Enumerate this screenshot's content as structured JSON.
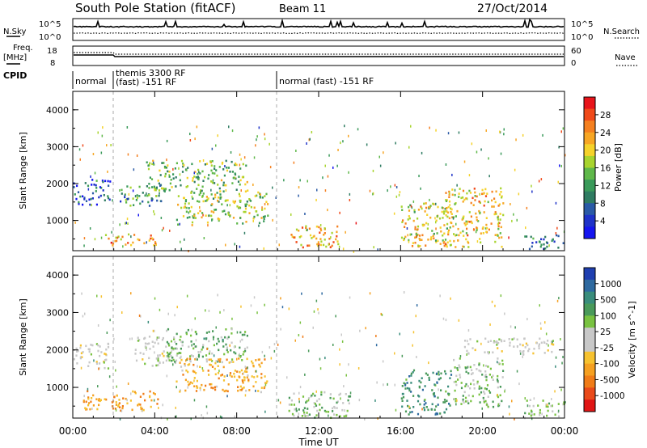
{
  "header": {
    "station": "South Pole Station (fitACF)",
    "beam": "Beam 11",
    "date": "27/Oct/2014"
  },
  "side_labels": {
    "nsky": "N.Sky",
    "nsearch": "N.Search",
    "freq_line1": "Freq.",
    "freq_line2": "[MHz]",
    "nave": "Nave",
    "cpid": "CPID"
  },
  "noise_panel": {
    "left_ticks": [
      "10^5",
      "10^0"
    ],
    "right_ticks": [
      "10^5",
      "10^0"
    ]
  },
  "freq_panel": {
    "left_ticks": [
      "18",
      "8"
    ],
    "right_ticks": [
      "60",
      "0"
    ]
  },
  "cpid_segments": [
    {
      "line1": "normal",
      "line2": ""
    },
    {
      "line1": "themis 3300 RF",
      "line2": "(fast) -151 RF"
    },
    {
      "line1": "normal (fast) -151 RF",
      "line2": ""
    }
  ],
  "power_colorbar": {
    "label": "Power [dB]",
    "ticks": [
      "28",
      "24",
      "20",
      "16",
      "12",
      "8",
      "4"
    ],
    "colors": [
      "#e8151b",
      "#f04a1a",
      "#f58020",
      "#f7a624",
      "#f5d22a",
      "#a8d42e",
      "#5fb84a",
      "#3a9a5a",
      "#2f7c62",
      "#2a5aa6",
      "#1f33c8",
      "#1515f0"
    ]
  },
  "velocity_colorbar": {
    "label": "Velocity [m s^-1]",
    "ticks": [
      "1000",
      "500",
      "100",
      "25",
      "-25",
      "-100",
      "-500",
      "-1000"
    ],
    "colors": [
      "#1f3fb0",
      "#2f6aa0",
      "#3a8d7c",
      "#4a9a5a",
      "#79c241",
      "#c8c8c8",
      "#c8c8c8",
      "#f6c230",
      "#f5a021",
      "#f07c18",
      "#e94a1a",
      "#e01515"
    ]
  },
  "time_axis": {
    "label": "Time UT",
    "ticks": [
      "00:00",
      "04:00",
      "08:00",
      "12:00",
      "16:00",
      "20:00",
      "00:00"
    ]
  },
  "range_axis": {
    "label": "Slant Range [km]",
    "ticks": [
      "1000",
      "2000",
      "3000",
      "4000"
    ]
  },
  "chart_data": [
    {
      "type": "heatmap",
      "quantity": "Power",
      "title": "South Pole Station (fitACF) Beam 11 27/Oct/2014",
      "xlabel": "Time UT",
      "ylabel": "Slant Range [km]",
      "xlim": [
        0,
        24
      ],
      "ylim": [
        180,
        4500
      ],
      "colorbar_label": "Power [dB]",
      "colorbar_ticks": [
        4,
        8,
        12,
        16,
        20,
        24,
        28
      ],
      "regions": [
        {
          "t0": 0.0,
          "t1": 1.8,
          "r0": 1450,
          "r1": 2150,
          "value": 6
        },
        {
          "t0": 1.5,
          "t1": 4.2,
          "r0": 350,
          "r1": 650,
          "value": 22
        },
        {
          "t0": 2.2,
          "t1": 4.5,
          "r0": 1400,
          "r1": 2000,
          "value": 10
        },
        {
          "t0": 3.5,
          "t1": 8.5,
          "r0": 1800,
          "r1": 2650,
          "value": 14
        },
        {
          "t0": 5.0,
          "t1": 9.5,
          "r0": 900,
          "r1": 1800,
          "value": 16
        },
        {
          "t0": 10.5,
          "t1": 13.0,
          "r0": 280,
          "r1": 900,
          "value": 22
        },
        {
          "t0": 16.0,
          "t1": 18.5,
          "r0": 300,
          "r1": 1500,
          "value": 18
        },
        {
          "t0": 18.0,
          "t1": 21.0,
          "r0": 300,
          "r1": 1900,
          "value": 20
        },
        {
          "t0": 22.0,
          "t1": 24.0,
          "r0": 250,
          "r1": 650,
          "value": 8
        }
      ]
    },
    {
      "type": "heatmap",
      "quantity": "Velocity",
      "xlabel": "Time UT",
      "ylabel": "Slant Range [km]",
      "xlim": [
        0,
        24
      ],
      "ylim": [
        180,
        4500
      ],
      "colorbar_label": "Velocity [m s^-1]",
      "colorbar_ticks": [
        -1000,
        -500,
        -100,
        -25,
        25,
        100,
        500,
        1000
      ],
      "regions": [
        {
          "t0": 0.0,
          "t1": 1.8,
          "r0": 1500,
          "r1": 2200,
          "value": 0
        },
        {
          "t0": 0.5,
          "t1": 4.2,
          "r0": 400,
          "r1": 950,
          "value": -450
        },
        {
          "t0": 3.0,
          "t1": 5.0,
          "r0": 1600,
          "r1": 2400,
          "value": 0
        },
        {
          "t0": 4.5,
          "t1": 8.5,
          "r0": 1700,
          "r1": 2600,
          "value": 300
        },
        {
          "t0": 5.0,
          "t1": 9.5,
          "r0": 900,
          "r1": 1800,
          "value": -400
        },
        {
          "t0": 10.5,
          "t1": 13.5,
          "r0": 200,
          "r1": 900,
          "value": 250
        },
        {
          "t0": 16.0,
          "t1": 18.5,
          "r0": 300,
          "r1": 1500,
          "value": 600
        },
        {
          "t0": 18.5,
          "t1": 21.0,
          "r0": 500,
          "r1": 1800,
          "value": 250
        },
        {
          "t0": 19.0,
          "t1": 23.5,
          "r0": 1900,
          "r1": 2350,
          "value": 0
        },
        {
          "t0": 22.0,
          "t1": 24.0,
          "r0": 250,
          "r1": 700,
          "value": 200
        }
      ]
    }
  ]
}
